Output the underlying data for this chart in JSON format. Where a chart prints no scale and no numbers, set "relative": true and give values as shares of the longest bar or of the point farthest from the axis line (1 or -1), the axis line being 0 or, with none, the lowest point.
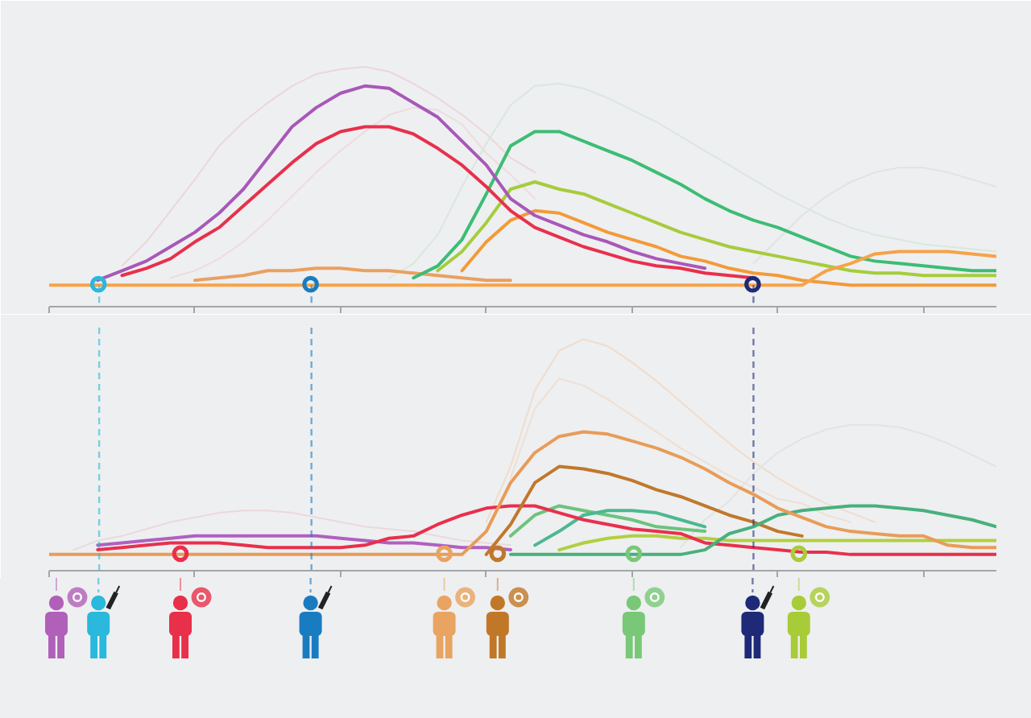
{
  "chart_data": [
    {
      "type": "line",
      "relative": true,
      "categories": [
        null,
        null,
        null,
        null,
        null,
        null,
        null,
        null,
        null,
        null,
        null,
        null,
        null,
        null,
        null,
        null,
        null,
        null,
        null,
        null,
        null,
        null,
        null,
        null,
        null,
        null,
        null,
        null,
        null,
        null,
        null,
        null,
        null,
        null,
        null,
        null,
        null,
        null,
        null,
        null
      ],
      "series": [
        {
          "color": "#ecd6da",
          "values": [
            null,
            null,
            null,
            0.17,
            0.27,
            0.4,
            0.53,
            0.67,
            0.77,
            0.85,
            0.92,
            0.97,
            0.99,
            1.0,
            0.98,
            0.93,
            0.87,
            0.8,
            0.72,
            0.62,
            0.56,
            null,
            null,
            null,
            null,
            null,
            null,
            null,
            null,
            null,
            null,
            null,
            null,
            null,
            null,
            null,
            null,
            null,
            null,
            null
          ]
        },
        {
          "color": "#eedcdc",
          "values": [
            null,
            null,
            null,
            null,
            null,
            0.12,
            0.15,
            0.2,
            0.27,
            0.36,
            0.46,
            0.56,
            0.65,
            0.73,
            0.8,
            0.83,
            0.82,
            0.76,
            0.64,
            0.55,
            0.45,
            null,
            null,
            null,
            null,
            null,
            null,
            null,
            null,
            null,
            null,
            null,
            null,
            null,
            null,
            null,
            null,
            null,
            null,
            null
          ]
        },
        {
          "color": "#d8e8dc",
          "values": [
            null,
            null,
            null,
            null,
            null,
            null,
            null,
            null,
            null,
            null,
            null,
            null,
            null,
            null,
            0.12,
            0.18,
            0.3,
            0.5,
            0.68,
            0.84,
            0.92,
            0.93,
            0.91,
            0.87,
            0.82,
            0.77,
            0.71,
            0.65,
            0.59,
            0.53,
            0.47,
            0.42,
            0.37,
            0.33,
            0.3,
            0.28,
            0.26,
            0.25,
            0.24,
            0.23
          ]
        },
        {
          "color": "#e0e3e5",
          "values": [
            null,
            null,
            null,
            null,
            null,
            null,
            null,
            null,
            null,
            null,
            null,
            null,
            null,
            null,
            null,
            null,
            null,
            null,
            null,
            null,
            null,
            null,
            null,
            null,
            null,
            null,
            null,
            null,
            null,
            0.18,
            0.28,
            0.38,
            0.46,
            0.52,
            0.56,
            0.58,
            0.58,
            0.56,
            0.53,
            0.5
          ]
        },
        {
          "color": "#eaa060",
          "values": [
            null,
            null,
            null,
            null,
            null,
            null,
            0.11,
            0.12,
            0.13,
            0.15,
            0.15,
            0.16,
            0.16,
            0.15,
            0.15,
            0.14,
            0.13,
            0.12,
            0.11,
            0.11,
            null,
            null,
            null,
            null,
            null,
            null,
            null,
            null,
            null,
            null,
            null,
            null,
            null,
            null,
            null,
            null,
            null,
            null,
            null,
            null
          ]
        },
        {
          "color": "#f49a38",
          "values": [
            null,
            null,
            null,
            null,
            null,
            null,
            null,
            null,
            null,
            null,
            null,
            null,
            null,
            null,
            null,
            null,
            null,
            0.15,
            0.27,
            0.36,
            0.4,
            0.39,
            0.35,
            0.31,
            0.28,
            0.25,
            0.21,
            0.19,
            0.16,
            0.14,
            0.13,
            0.11,
            0.1,
            0.09,
            0.09,
            0.09,
            0.09,
            0.09,
            0.09,
            0.09
          ]
        },
        {
          "color": "#a6cc3c",
          "values": [
            null,
            null,
            null,
            null,
            null,
            null,
            null,
            null,
            null,
            null,
            null,
            null,
            null,
            null,
            null,
            null,
            0.15,
            0.23,
            0.35,
            0.49,
            0.52,
            0.49,
            0.47,
            0.43,
            0.39,
            0.35,
            0.31,
            0.28,
            0.25,
            0.23,
            0.21,
            0.19,
            0.17,
            0.15,
            0.14,
            0.14,
            0.13,
            0.13,
            0.13,
            0.13
          ]
        },
        {
          "color": "#3cbd74",
          "values": [
            null,
            null,
            null,
            null,
            null,
            null,
            null,
            null,
            null,
            null,
            null,
            null,
            null,
            null,
            null,
            0.12,
            0.17,
            0.28,
            0.47,
            0.67,
            0.73,
            0.73,
            0.69,
            0.65,
            0.61,
            0.56,
            0.51,
            0.45,
            0.4,
            0.36,
            0.33,
            0.29,
            0.25,
            0.21,
            0.19,
            0.18,
            0.17,
            0.16,
            0.15,
            0.15
          ]
        },
        {
          "color": "#e8304c",
          "values": [
            null,
            null,
            null,
            0.13,
            0.16,
            0.2,
            0.27,
            0.33,
            0.42,
            0.51,
            0.6,
            0.68,
            0.73,
            0.75,
            0.75,
            0.72,
            0.66,
            0.59,
            0.5,
            0.4,
            0.33,
            0.29,
            0.25,
            0.22,
            0.19,
            0.17,
            0.16,
            0.14,
            0.13,
            0.12,
            null,
            null,
            null,
            null,
            null,
            null,
            null,
            null,
            null,
            null
          ]
        },
        {
          "color": "#a858b8",
          "values": [
            null,
            null,
            0.11,
            0.15,
            0.19,
            0.25,
            0.31,
            0.39,
            0.49,
            0.62,
            0.75,
            0.83,
            0.89,
            0.92,
            0.91,
            0.85,
            0.79,
            0.69,
            0.59,
            0.45,
            0.38,
            0.34,
            0.3,
            0.27,
            0.23,
            0.2,
            0.18,
            0.16,
            null,
            null,
            null,
            null,
            null,
            null,
            null,
            null,
            null,
            null,
            null,
            null
          ]
        },
        {
          "color": "#f7a348",
          "values": [
            0.09,
            0.09,
            0.09,
            0.09,
            0.09,
            0.09,
            0.09,
            0.09,
            0.09,
            0.09,
            0.09,
            0.09,
            0.09,
            0.09,
            0.09,
            0.09,
            0.09,
            0.09,
            0.09,
            0.09,
            0.09,
            0.09,
            0.09,
            0.09,
            0.09,
            0.09,
            0.09,
            0.09,
            0.09,
            0.09,
            0.09,
            0.09,
            0.15,
            0.18,
            0.22,
            0.23,
            0.23,
            0.23,
            0.22,
            0.21
          ]
        }
      ]
    },
    {
      "type": "line",
      "relative": true,
      "categories": [
        null,
        null,
        null,
        null,
        null,
        null,
        null,
        null,
        null,
        null,
        null,
        null,
        null,
        null,
        null,
        null,
        null,
        null,
        null,
        null,
        null,
        null,
        null,
        null,
        null,
        null,
        null,
        null,
        null,
        null,
        null,
        null,
        null,
        null,
        null,
        null,
        null,
        null,
        null,
        null
      ],
      "series": [
        {
          "color": "#ecd8da",
          "values": [
            null,
            0.09,
            0.13,
            0.15,
            0.18,
            0.21,
            0.23,
            0.25,
            0.26,
            0.26,
            0.25,
            0.23,
            0.21,
            0.19,
            0.18,
            0.17,
            0.15,
            0.13,
            0.12,
            0.11,
            null,
            null,
            null,
            null,
            null,
            null,
            null,
            null,
            null,
            null,
            null,
            null,
            null,
            null,
            null,
            null,
            null,
            null,
            null,
            null
          ]
        },
        {
          "color": "#f0dccb",
          "values": [
            null,
            null,
            null,
            null,
            null,
            null,
            null,
            null,
            null,
            null,
            null,
            null,
            null,
            null,
            null,
            null,
            null,
            null,
            0.21,
            0.45,
            0.78,
            0.95,
            1.0,
            0.97,
            0.9,
            0.82,
            0.73,
            0.64,
            0.55,
            0.47,
            0.4,
            0.34,
            0.29,
            0.25,
            0.21,
            null,
            null,
            null,
            null,
            null
          ]
        },
        {
          "color": "#efdfd2",
          "values": [
            null,
            null,
            null,
            null,
            null,
            null,
            null,
            null,
            null,
            null,
            null,
            null,
            null,
            null,
            null,
            null,
            null,
            null,
            null,
            0.4,
            0.7,
            0.83,
            0.8,
            0.74,
            0.67,
            0.6,
            0.53,
            0.47,
            0.41,
            0.36,
            0.31,
            0.29,
            0.24,
            0.21,
            null,
            null,
            null,
            null,
            null,
            null
          ]
        },
        {
          "color": "#e1e4e4",
          "values": [
            null,
            null,
            null,
            null,
            null,
            null,
            null,
            null,
            null,
            null,
            null,
            null,
            null,
            null,
            null,
            null,
            null,
            null,
            null,
            null,
            null,
            null,
            null,
            null,
            null,
            null,
            0.1,
            0.22,
            0.3,
            0.42,
            0.51,
            0.57,
            0.61,
            0.63,
            0.63,
            0.62,
            0.59,
            0.55,
            0.5,
            0.45
          ]
        },
        {
          "color": "#b060c0",
          "values": [
            null,
            null,
            0.11,
            0.12,
            0.13,
            0.14,
            0.15,
            0.15,
            0.15,
            0.15,
            0.15,
            0.15,
            0.14,
            0.13,
            0.12,
            0.12,
            0.11,
            0.1,
            0.1,
            0.09,
            null,
            null,
            null,
            null,
            null,
            null,
            null,
            null,
            null,
            null,
            null,
            null,
            null,
            null,
            null,
            null,
            null,
            null,
            null,
            null
          ]
        },
        {
          "color": "#b0d040",
          "values": [
            null,
            null,
            null,
            null,
            null,
            null,
            null,
            null,
            null,
            null,
            null,
            null,
            null,
            null,
            null,
            null,
            null,
            null,
            null,
            null,
            null,
            0.09,
            0.12,
            0.14,
            0.15,
            0.15,
            0.14,
            0.14,
            0.13,
            0.13,
            0.13,
            0.13,
            0.13,
            0.13,
            0.13,
            0.13,
            0.13,
            0.13,
            0.13,
            0.13
          ]
        },
        {
          "color": "#6cc47c",
          "values": [
            null,
            null,
            null,
            null,
            null,
            null,
            null,
            null,
            null,
            null,
            null,
            null,
            null,
            null,
            null,
            null,
            null,
            null,
            null,
            0.15,
            0.24,
            0.28,
            0.26,
            0.24,
            0.22,
            0.19,
            0.18,
            0.17,
            null,
            null,
            null,
            null,
            null,
            null,
            null,
            null,
            null,
            null,
            null,
            null
          ]
        },
        {
          "color": "#4cb890",
          "values": [
            null,
            null,
            null,
            null,
            null,
            null,
            null,
            null,
            null,
            null,
            null,
            null,
            null,
            null,
            null,
            null,
            null,
            null,
            null,
            null,
            0.11,
            0.17,
            0.24,
            0.26,
            0.26,
            0.25,
            0.22,
            0.19,
            null,
            null,
            null,
            null,
            null,
            null,
            null,
            null,
            null,
            null,
            null,
            null
          ]
        },
        {
          "color": "#e8304c",
          "values": [
            null,
            null,
            0.09,
            0.1,
            0.11,
            0.12,
            0.12,
            0.12,
            0.11,
            0.1,
            0.1,
            0.1,
            0.1,
            0.11,
            0.14,
            0.15,
            0.2,
            0.24,
            0.27,
            0.28,
            0.28,
            0.25,
            0.22,
            0.2,
            0.18,
            0.17,
            0.16,
            0.12,
            0.11,
            0.1,
            0.09,
            0.08,
            0.08,
            0.07,
            0.07,
            0.07,
            0.07,
            0.07,
            0.07,
            0.07
          ]
        },
        {
          "color": "#c0782c",
          "values": [
            null,
            null,
            null,
            null,
            null,
            null,
            null,
            null,
            null,
            null,
            null,
            null,
            null,
            null,
            null,
            null,
            null,
            null,
            0.07,
            0.2,
            0.38,
            0.45,
            0.44,
            0.42,
            0.39,
            0.35,
            0.32,
            0.28,
            0.24,
            0.21,
            0.17,
            0.15,
            null,
            null,
            null,
            null,
            null,
            null,
            null,
            null
          ]
        },
        {
          "color": "#48b07c",
          "values": [
            null,
            null,
            null,
            null,
            null,
            null,
            null,
            null,
            null,
            null,
            null,
            null,
            null,
            null,
            null,
            null,
            null,
            null,
            null,
            0.07,
            0.07,
            0.07,
            0.07,
            0.07,
            0.07,
            0.07,
            0.07,
            0.09,
            0.16,
            0.19,
            0.24,
            0.26,
            0.27,
            0.28,
            0.28,
            0.27,
            0.26,
            0.24,
            0.22,
            0.19
          ]
        },
        {
          "color": "#e89c58",
          "values": [
            0.07,
            0.07,
            0.07,
            0.07,
            0.07,
            0.07,
            0.07,
            0.07,
            0.07,
            0.07,
            0.07,
            0.07,
            0.07,
            0.07,
            0.07,
            0.07,
            0.07,
            0.07,
            0.17,
            0.38,
            0.51,
            0.58,
            0.6,
            0.59,
            0.56,
            0.53,
            0.49,
            0.44,
            0.38,
            0.33,
            0.27,
            0.23,
            0.19,
            0.17,
            0.16,
            0.15,
            0.15,
            0.11,
            0.1,
            0.1
          ]
        }
      ]
    }
  ]
}
